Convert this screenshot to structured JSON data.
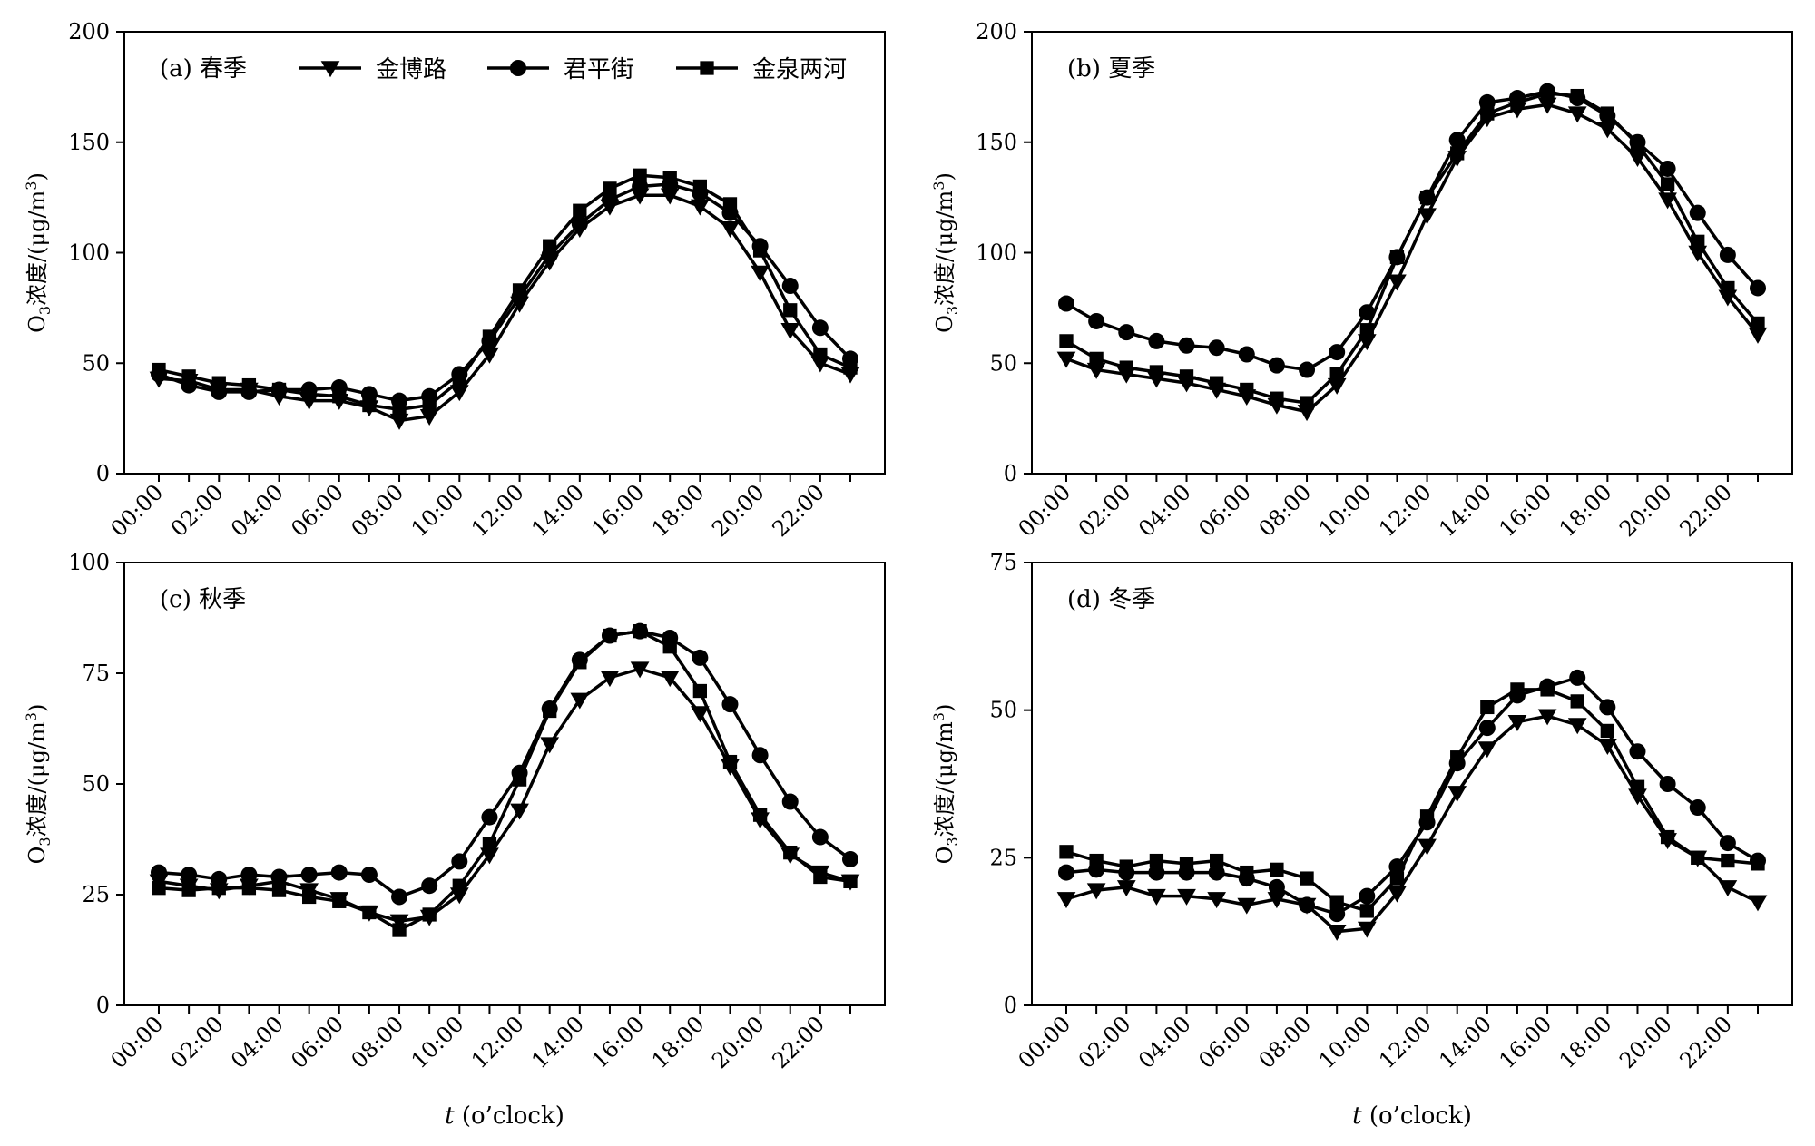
{
  "chart_data": [
    {
      "type": "line",
      "panel_label": "(a) 春季",
      "ylabel": "O3浓度/(μg/m3)",
      "xlabel": "",
      "ylim": [
        0,
        200
      ],
      "yticks": [
        0,
        50,
        100,
        150,
        200
      ],
      "x": [
        0,
        1,
        2,
        3,
        4,
        5,
        6,
        7,
        8,
        9,
        10,
        11,
        12,
        13,
        14,
        15,
        16,
        17,
        18,
        19,
        20,
        21,
        22,
        23
      ],
      "xtick_labels": [
        "00:00",
        "02:00",
        "04:00",
        "06:00",
        "08:00",
        "10:00",
        "12:00",
        "14:00",
        "16:00",
        "18:00",
        "20:00",
        "22:00"
      ],
      "legend": {
        "placement": "top",
        "entries": [
          "金博路",
          "君平街",
          "金泉两河"
        ]
      },
      "series": [
        {
          "name": "金博路",
          "marker": "triangle-down",
          "values": [
            43,
            42,
            38,
            38,
            35,
            33,
            33,
            30,
            24,
            26,
            37,
            54,
            77,
            96,
            111,
            121,
            126,
            126,
            121,
            111,
            91,
            65,
            50,
            45
          ]
        },
        {
          "name": "君平街",
          "marker": "circle",
          "values": [
            45,
            40,
            37,
            37,
            38,
            38,
            39,
            36,
            33,
            35,
            45,
            60,
            80,
            99,
            113,
            124,
            130,
            131,
            127,
            118,
            103,
            85,
            66,
            52
          ]
        },
        {
          "name": "金泉两河",
          "marker": "square",
          "values": [
            47,
            44,
            41,
            40,
            38,
            36,
            35,
            31,
            29,
            31,
            42,
            62,
            83,
            103,
            119,
            129,
            135,
            134,
            130,
            122,
            101,
            74,
            54,
            48
          ]
        }
      ]
    },
    {
      "type": "line",
      "panel_label": "(b) 夏季",
      "ylabel": "O3浓度/(μg/m3)",
      "xlabel": "",
      "ylim": [
        0,
        200
      ],
      "yticks": [
        0,
        50,
        100,
        150,
        200
      ],
      "x": [
        0,
        1,
        2,
        3,
        4,
        5,
        6,
        7,
        8,
        9,
        10,
        11,
        12,
        13,
        14,
        15,
        16,
        17,
        18,
        19,
        20,
        21,
        22,
        23
      ],
      "xtick_labels": [
        "00:00",
        "02:00",
        "04:00",
        "06:00",
        "08:00",
        "10:00",
        "12:00",
        "14:00",
        "16:00",
        "18:00",
        "20:00",
        "22:00"
      ],
      "series": [
        {
          "name": "金博路",
          "marker": "triangle-down",
          "values": [
            52,
            47,
            45,
            43,
            41,
            38,
            35,
            31,
            28,
            40,
            60,
            87,
            117,
            143,
            161,
            165,
            167,
            163,
            156,
            143,
            124,
            100,
            80,
            63
          ]
        },
        {
          "name": "君平街",
          "marker": "circle",
          "values": [
            77,
            69,
            64,
            60,
            58,
            57,
            54,
            49,
            47,
            55,
            73,
            98,
            125,
            151,
            168,
            170,
            173,
            170,
            162,
            150,
            138,
            118,
            99,
            84
          ]
        },
        {
          "name": "金泉两河",
          "marker": "square",
          "values": [
            60,
            52,
            48,
            46,
            44,
            41,
            38,
            34,
            32,
            45,
            65,
            98,
            125,
            145,
            163,
            168,
            172,
            171,
            163,
            149,
            131,
            105,
            84,
            68
          ]
        }
      ]
    },
    {
      "type": "line",
      "panel_label": "(c) 秋季",
      "ylabel": "O3浓度/(μg/m3)",
      "xlabel": "t (o’clock)",
      "ylim": [
        0,
        100
      ],
      "yticks": [
        0,
        25,
        50,
        75,
        100
      ],
      "x": [
        0,
        1,
        2,
        3,
        4,
        5,
        6,
        7,
        8,
        9,
        10,
        11,
        12,
        13,
        14,
        15,
        16,
        17,
        18,
        19,
        20,
        21,
        22,
        23
      ],
      "xtick_labels": [
        "00:00",
        "02:00",
        "04:00",
        "06:00",
        "08:00",
        "10:00",
        "12:00",
        "14:00",
        "16:00",
        "18:00",
        "20:00",
        "22:00"
      ],
      "series": [
        {
          "name": "金博路",
          "marker": "triangle-down",
          "values": [
            28,
            27,
            26,
            27,
            28,
            26,
            24,
            21,
            19,
            20,
            25,
            34,
            44,
            59,
            69,
            74,
            76,
            74,
            66,
            54,
            42,
            34,
            30,
            28
          ]
        },
        {
          "name": "君平街",
          "marker": "circle",
          "values": [
            30,
            29.5,
            28.5,
            29.5,
            29,
            29.5,
            30,
            29.5,
            24.5,
            27,
            32.5,
            42.5,
            52.5,
            67,
            78,
            83.5,
            84.5,
            83,
            78.5,
            68,
            56.5,
            46,
            38,
            33
          ]
        },
        {
          "name": "金泉两河",
          "marker": "square",
          "values": [
            26.5,
            26,
            26.5,
            26.5,
            26,
            24.5,
            23.5,
            21,
            17,
            20.5,
            27,
            36.5,
            51,
            66.5,
            77.5,
            83.5,
            84.5,
            81,
            71,
            55,
            43,
            34.5,
            29,
            28
          ]
        }
      ]
    },
    {
      "type": "line",
      "panel_label": "(d) 冬季",
      "ylabel": "O3浓度/(μg/m3)",
      "xlabel": "t (o’clock)",
      "ylim": [
        0,
        75
      ],
      "yticks": [
        0,
        25,
        50,
        75
      ],
      "x": [
        0,
        1,
        2,
        3,
        4,
        5,
        6,
        7,
        8,
        9,
        10,
        11,
        12,
        13,
        14,
        15,
        16,
        17,
        18,
        19,
        20,
        21,
        22,
        23
      ],
      "xtick_labels": [
        "00:00",
        "02:00",
        "04:00",
        "06:00",
        "08:00",
        "10:00",
        "12:00",
        "14:00",
        "16:00",
        "18:00",
        "20:00",
        "22:00"
      ],
      "series": [
        {
          "name": "金博路",
          "marker": "triangle-down",
          "values": [
            18,
            19.5,
            20,
            18.5,
            18.5,
            18,
            17,
            18,
            17,
            12.5,
            13,
            19,
            27,
            36,
            43.5,
            48,
            49,
            47.5,
            44,
            35.5,
            28,
            25,
            20,
            17.5
          ]
        },
        {
          "name": "君平街",
          "marker": "circle",
          "values": [
            22.5,
            23,
            22.5,
            22.5,
            22.5,
            22.5,
            21.5,
            20,
            17,
            15.5,
            18.5,
            23.5,
            31,
            41,
            47,
            52.5,
            54,
            55.5,
            50.5,
            43,
            37.5,
            33.5,
            27.5,
            24.5
          ]
        },
        {
          "name": "金泉两河",
          "marker": "square",
          "values": [
            26,
            24.5,
            23.5,
            24.5,
            24,
            24.5,
            22.5,
            23,
            21.5,
            17.5,
            16,
            21.5,
            32,
            42,
            50.5,
            53.5,
            53.5,
            51.5,
            46.5,
            37,
            28.5,
            25,
            24.5,
            24
          ]
        }
      ]
    }
  ]
}
